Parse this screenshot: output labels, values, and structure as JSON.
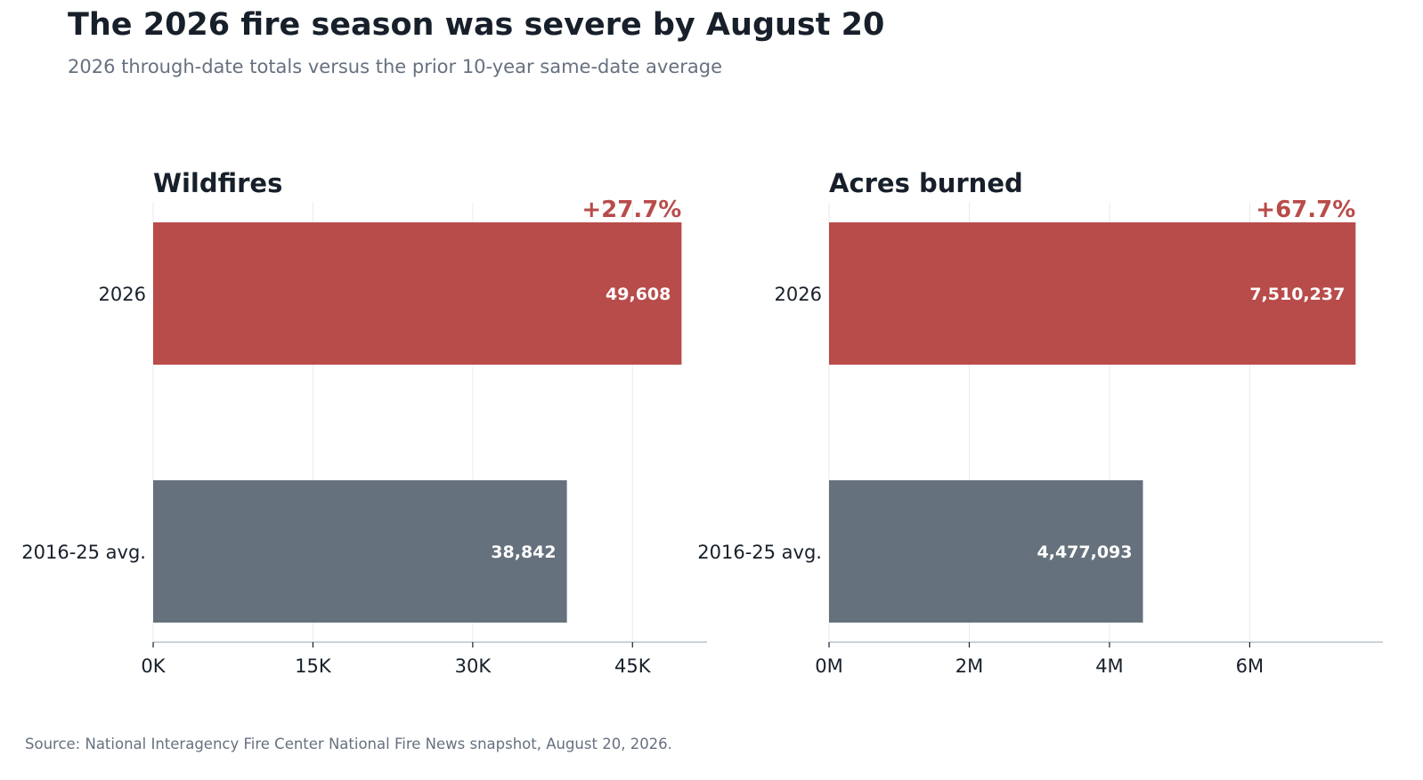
{
  "header": {
    "title": "The 2026 fire season was severe by August 20",
    "subtitle": "2026 through-date totals versus the prior 10-year same-date average"
  },
  "footer": {
    "source": "Source: National Interagency Fire Center National Fire News snapshot, August 20, 2026."
  },
  "colors": {
    "current": "#b84c4a",
    "average": "#65717c",
    "change_text": "#b84c4a",
    "grid": "#e8eaed",
    "axis": "#b8c4ce"
  },
  "chart_data": [
    {
      "type": "bar",
      "orientation": "horizontal",
      "title": "Wildfires",
      "categories": [
        "2026",
        "2016-25 avg."
      ],
      "values": [
        49608,
        38842
      ],
      "value_labels": [
        "49,608",
        "38,842"
      ],
      "change_label": "+27.7%",
      "xlim": [
        0,
        52000
      ],
      "xticks": [
        0,
        15000,
        30000,
        45000
      ],
      "xtick_labels": [
        "0K",
        "15K",
        "30K",
        "45K"
      ],
      "xlabel": "",
      "ylabel": "",
      "grid": "vertical"
    },
    {
      "type": "bar",
      "orientation": "horizontal",
      "title": "Acres burned",
      "categories": [
        "2026",
        "2016-25 avg."
      ],
      "values": [
        7510237,
        4477093
      ],
      "value_labels": [
        "7,510,237",
        "4,477,093"
      ],
      "change_label": "+67.7%",
      "xlim": [
        0,
        7900000
      ],
      "xticks": [
        0,
        2000000,
        4000000,
        6000000
      ],
      "xtick_labels": [
        "0M",
        "2M",
        "4M",
        "6M"
      ],
      "xlabel": "",
      "ylabel": "",
      "grid": "vertical"
    }
  ]
}
